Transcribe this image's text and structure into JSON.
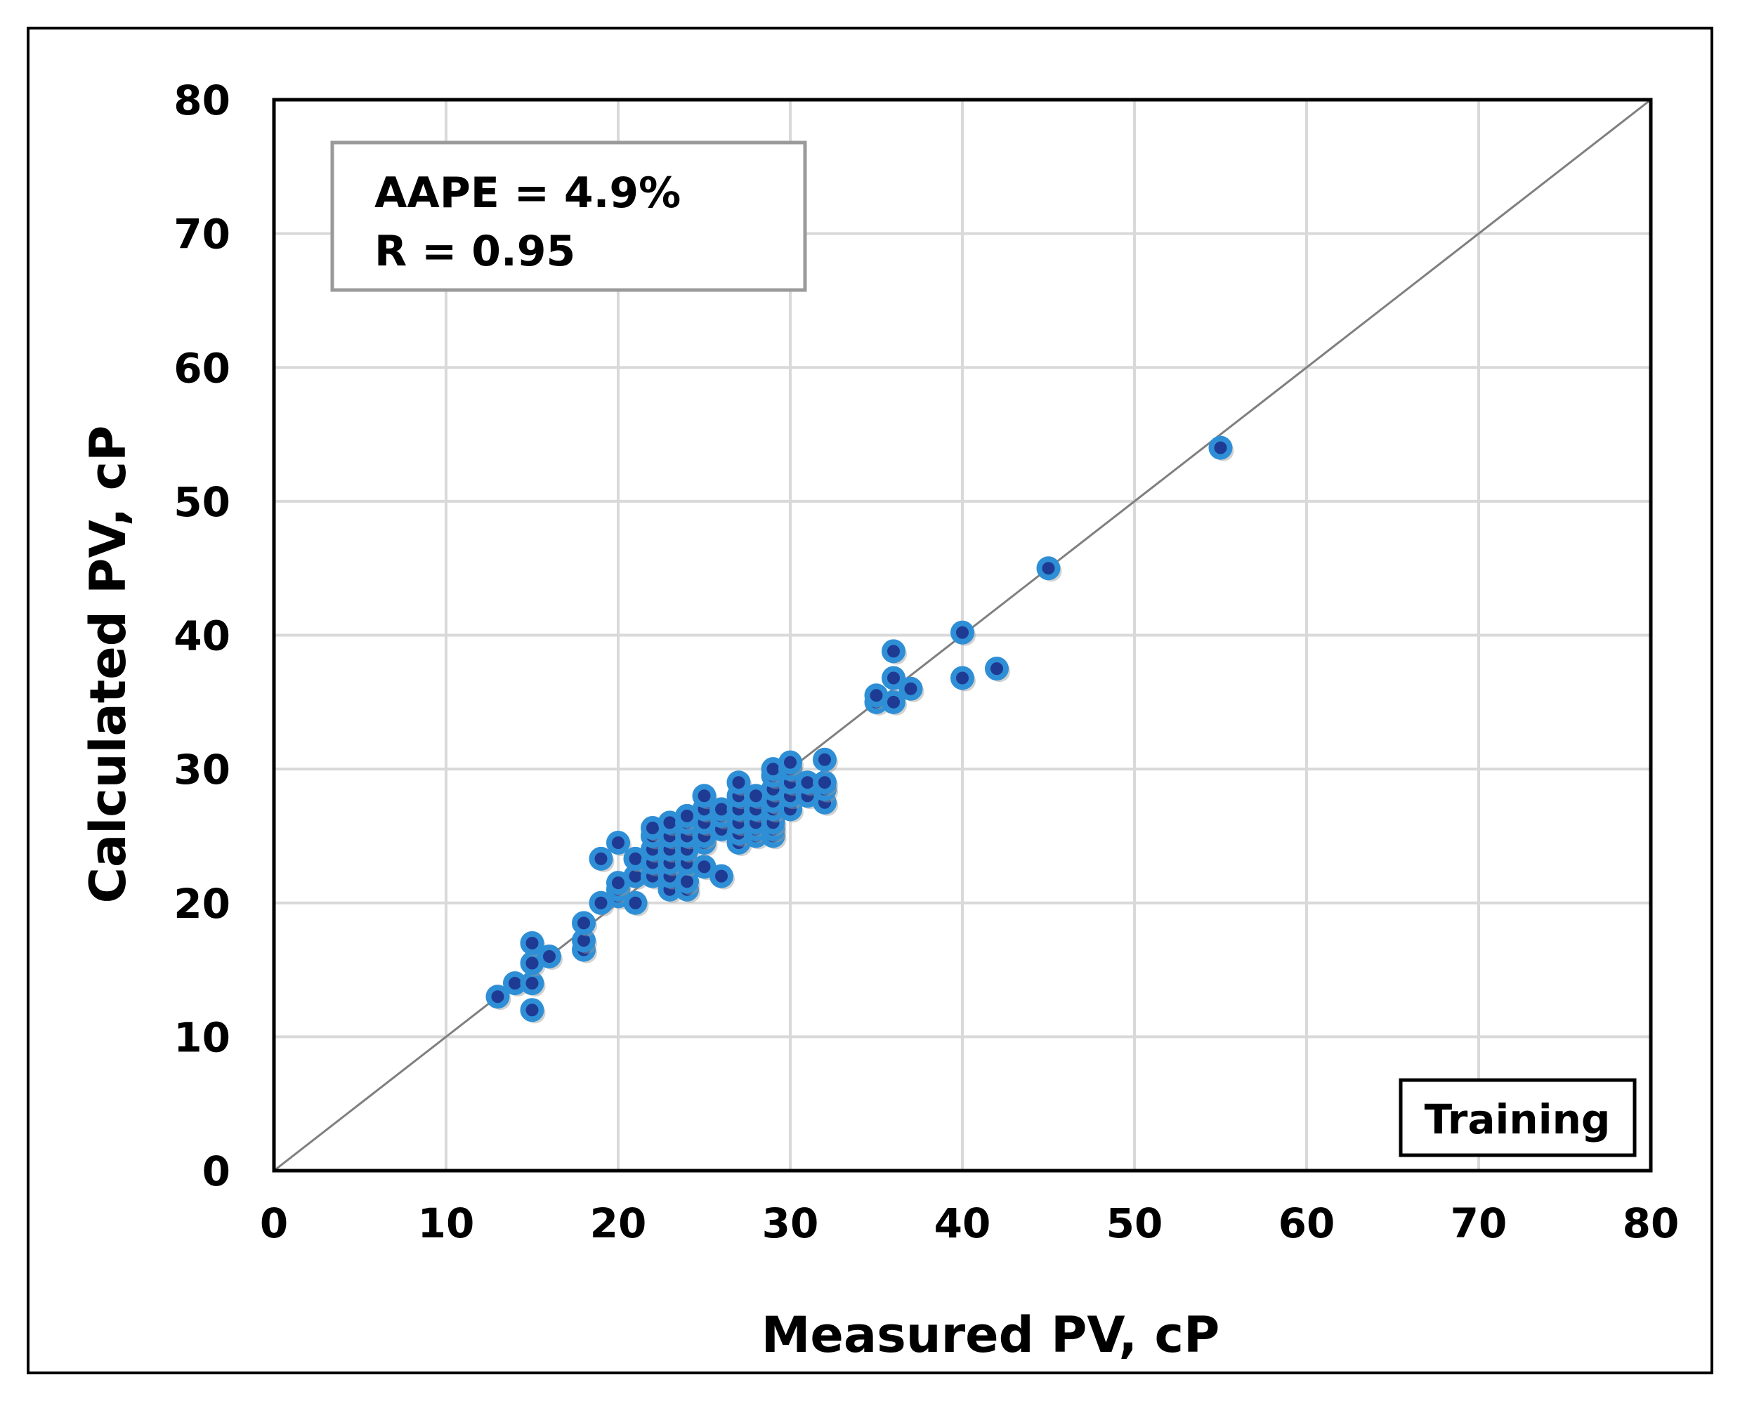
{
  "chart_data": {
    "type": "scatter",
    "title": "",
    "xlabel": "Measured PV, cP",
    "ylabel": "Calculated PV, cP",
    "xlim": [
      0,
      80
    ],
    "ylim": [
      0,
      80
    ],
    "xticks": [
      0,
      10,
      20,
      30,
      40,
      50,
      60,
      70,
      80
    ],
    "yticks": [
      0,
      10,
      20,
      30,
      40,
      50,
      60,
      70,
      80
    ],
    "grid": true,
    "reference_line": {
      "name": "1:1 line",
      "from": [
        0,
        0
      ],
      "to": [
        80,
        80
      ]
    },
    "annotations": {
      "stats_lines": [
        "AAPE = 4.9%",
        "R = 0.95"
      ],
      "label": "Training"
    },
    "series": [
      {
        "name": "Training",
        "color": "#2e8fd6",
        "points": [
          [
            13,
            13
          ],
          [
            14,
            14
          ],
          [
            15,
            12
          ],
          [
            15,
            14
          ],
          [
            15,
            15.5
          ],
          [
            15,
            17
          ],
          [
            16,
            16
          ],
          [
            18,
            16.5
          ],
          [
            18,
            17.2
          ],
          [
            18,
            18.5
          ],
          [
            19,
            20
          ],
          [
            19,
            23.3
          ],
          [
            20,
            20.5
          ],
          [
            20,
            21
          ],
          [
            20,
            21.5
          ],
          [
            20,
            24.5
          ],
          [
            21,
            20
          ],
          [
            21,
            22
          ],
          [
            21,
            23.3
          ],
          [
            22,
            22
          ],
          [
            22,
            23
          ],
          [
            22,
            24
          ],
          [
            22,
            25
          ],
          [
            22,
            25.6
          ],
          [
            23,
            21
          ],
          [
            23,
            22
          ],
          [
            23,
            23
          ],
          [
            23,
            24
          ],
          [
            23,
            25
          ],
          [
            23,
            26
          ],
          [
            24,
            21
          ],
          [
            24,
            21.6
          ],
          [
            24,
            23
          ],
          [
            24,
            24
          ],
          [
            24,
            25
          ],
          [
            24,
            26
          ],
          [
            24,
            26.5
          ],
          [
            25,
            22.7
          ],
          [
            25,
            24.5
          ],
          [
            25,
            25
          ],
          [
            25,
            26
          ],
          [
            25,
            27
          ],
          [
            25,
            28
          ],
          [
            26,
            22
          ],
          [
            26,
            25.5
          ],
          [
            26,
            26.5
          ],
          [
            26,
            27
          ],
          [
            27,
            24.5
          ],
          [
            27,
            25.2
          ],
          [
            27,
            26
          ],
          [
            27,
            27
          ],
          [
            27,
            28
          ],
          [
            27,
            29
          ],
          [
            28,
            25
          ],
          [
            28,
            25.5
          ],
          [
            28,
            26
          ],
          [
            28,
            27
          ],
          [
            28,
            28
          ],
          [
            29,
            25
          ],
          [
            29,
            25.5
          ],
          [
            29,
            26
          ],
          [
            29,
            27
          ],
          [
            29,
            27.6
          ],
          [
            29,
            28.5
          ],
          [
            29,
            29.5
          ],
          [
            29,
            30
          ],
          [
            30,
            27
          ],
          [
            30,
            28
          ],
          [
            30,
            29
          ],
          [
            30,
            30
          ],
          [
            30,
            30.5
          ],
          [
            31,
            28
          ],
          [
            31,
            29
          ],
          [
            32,
            27.5
          ],
          [
            32,
            28.5
          ],
          [
            32,
            29
          ],
          [
            32,
            30.7
          ],
          [
            35,
            35
          ],
          [
            35,
            35.5
          ],
          [
            36,
            35
          ],
          [
            36,
            36.8
          ],
          [
            36,
            38.8
          ],
          [
            37,
            36
          ],
          [
            40,
            36.8
          ],
          [
            40,
            40.2
          ],
          [
            42,
            37.5
          ],
          [
            45,
            45
          ],
          [
            55,
            54
          ]
        ]
      }
    ]
  }
}
